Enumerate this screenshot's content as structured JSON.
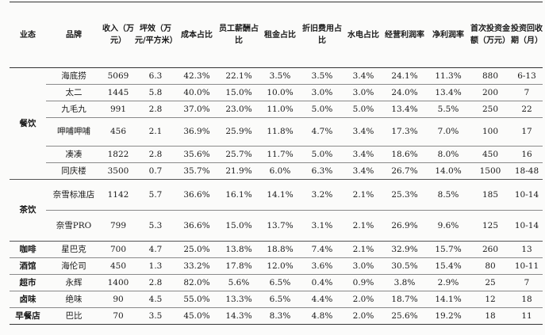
{
  "headers": {
    "segment": "业态",
    "brand": "品牌",
    "revenue": "收入（万元）",
    "efficiency": "坪效（万元/平方米）",
    "cost": "成本占比",
    "labor": "员工薪酬占比",
    "rent": "租金占比",
    "depreciation": "折旧费用占比",
    "utilities": "水电占比",
    "op_margin": "经营利润率",
    "net_margin": "净利润率",
    "investment": "首次投资金额（万元）",
    "payback": "投资回收期（月）"
  },
  "segments": {
    "catering": "餐饮",
    "tea": "茶饮",
    "coffee": "咖啡",
    "bar": "酒馆",
    "supermarket": "超市",
    "braised": "卤味",
    "breakfast": "早餐店"
  },
  "rows": [
    {
      "brand": "海底捞",
      "revenue": "5069",
      "efficiency": "6.3",
      "cost": "42.3%",
      "labor": "22.1%",
      "rent": "3.5%",
      "depreciation": "3.5%",
      "utilities": "3.4%",
      "op_margin": "24.1%",
      "net_margin": "11.3%",
      "investment": "880",
      "payback": "6-13"
    },
    {
      "brand": "太二",
      "revenue": "1445",
      "efficiency": "5.8",
      "cost": "40.0%",
      "labor": "15.0%",
      "rent": "10.0%",
      "depreciation": "3.0%",
      "utilities": "3.0%",
      "op_margin": "24.0%",
      "net_margin": "13.4%",
      "investment": "200",
      "payback": "7"
    },
    {
      "brand": "九毛九",
      "revenue": "991",
      "efficiency": "2.8",
      "cost": "37.0%",
      "labor": "23.0%",
      "rent": "11.0%",
      "depreciation": "5.0%",
      "utilities": "5.0%",
      "op_margin": "13.4%",
      "net_margin": "5.5%",
      "investment": "250",
      "payback": "22"
    },
    {
      "brand": "呷哺呷哺",
      "revenue": "456",
      "efficiency": "2.1",
      "cost": "36.9%",
      "labor": "25.9%",
      "rent": "11.8%",
      "depreciation": "4.7%",
      "utilities": "3.4%",
      "op_margin": "17.3%",
      "net_margin": "7.0%",
      "investment": "100",
      "payback": "17"
    },
    {
      "brand": "凑凑",
      "revenue": "1822",
      "efficiency": "2.8",
      "cost": "35.6%",
      "labor": "25.7%",
      "rent": "11.7%",
      "depreciation": "5.0%",
      "utilities": "3.4%",
      "op_margin": "18.6%",
      "net_margin": "8.0%",
      "investment": "450",
      "payback": "16"
    },
    {
      "brand": "同庆楼",
      "revenue": "3500",
      "efficiency": "0.7",
      "cost": "35.7%",
      "labor": "21.9%",
      "rent": "6.0%",
      "depreciation": "6.3%",
      "utilities": "3.4%",
      "op_margin": "26.7%",
      "net_margin": "14.0%",
      "investment": "1500",
      "payback": "18-48"
    },
    {
      "brand": "奈雪标准店",
      "revenue": "1142",
      "efficiency": "5.7",
      "cost": "36.6%",
      "labor": "16.1%",
      "rent": "14.1%",
      "depreciation": "3.2%",
      "utilities": "2.1%",
      "op_margin": "25.3%",
      "net_margin": "8.5%",
      "investment": "185",
      "payback": "10-14"
    },
    {
      "brand": "奈雪PRO",
      "revenue": "799",
      "efficiency": "5.3",
      "cost": "36.6%",
      "labor": "15.0%",
      "rent": "13.7%",
      "depreciation": "3.1%",
      "utilities": "2.1%",
      "op_margin": "26.9%",
      "net_margin": "9.6%",
      "investment": "125",
      "payback": "10-14"
    },
    {
      "brand": "星巴克",
      "revenue": "700",
      "efficiency": "4.7",
      "cost": "25.0%",
      "labor": "13.8%",
      "rent": "18.8%",
      "depreciation": "7.4%",
      "utilities": "2.1%",
      "op_margin": "32.9%",
      "net_margin": "15.7%",
      "investment": "260",
      "payback": "13"
    },
    {
      "brand": "海伦司",
      "revenue": "450",
      "efficiency": "1.3",
      "cost": "33.2%",
      "labor": "17.8%",
      "rent": "12.0%",
      "depreciation": "3.6%",
      "utilities": "3.0%",
      "op_margin": "30.5%",
      "net_margin": "15.4%",
      "investment": "80",
      "payback": "10-11"
    },
    {
      "brand": "永辉",
      "revenue": "1400",
      "efficiency": "2.8",
      "cost": "82.0%",
      "labor": "5.6%",
      "rent": "6.5%",
      "depreciation": "0.4%",
      "utilities": "0.9%",
      "op_margin": "3.8%",
      "net_margin": "2.9%",
      "investment": "25",
      "payback": "7"
    },
    {
      "brand": "绝味",
      "revenue": "90",
      "efficiency": "4.5",
      "cost": "55.0%",
      "labor": "13.3%",
      "rent": "6.5%",
      "depreciation": "4.4%",
      "utilities": "2.0%",
      "op_margin": "18.7%",
      "net_margin": "14.1%",
      "investment": "12",
      "payback": "18"
    },
    {
      "brand": "巴比",
      "revenue": "70",
      "efficiency": "3.5",
      "cost": "45.0%",
      "labor": "14.3%",
      "rent": "8.3%",
      "depreciation": "4.8%",
      "utilities": "2.0%",
      "op_margin": "25.6%",
      "net_margin": "19.2%",
      "investment": "18",
      "payback": "11"
    }
  ]
}
